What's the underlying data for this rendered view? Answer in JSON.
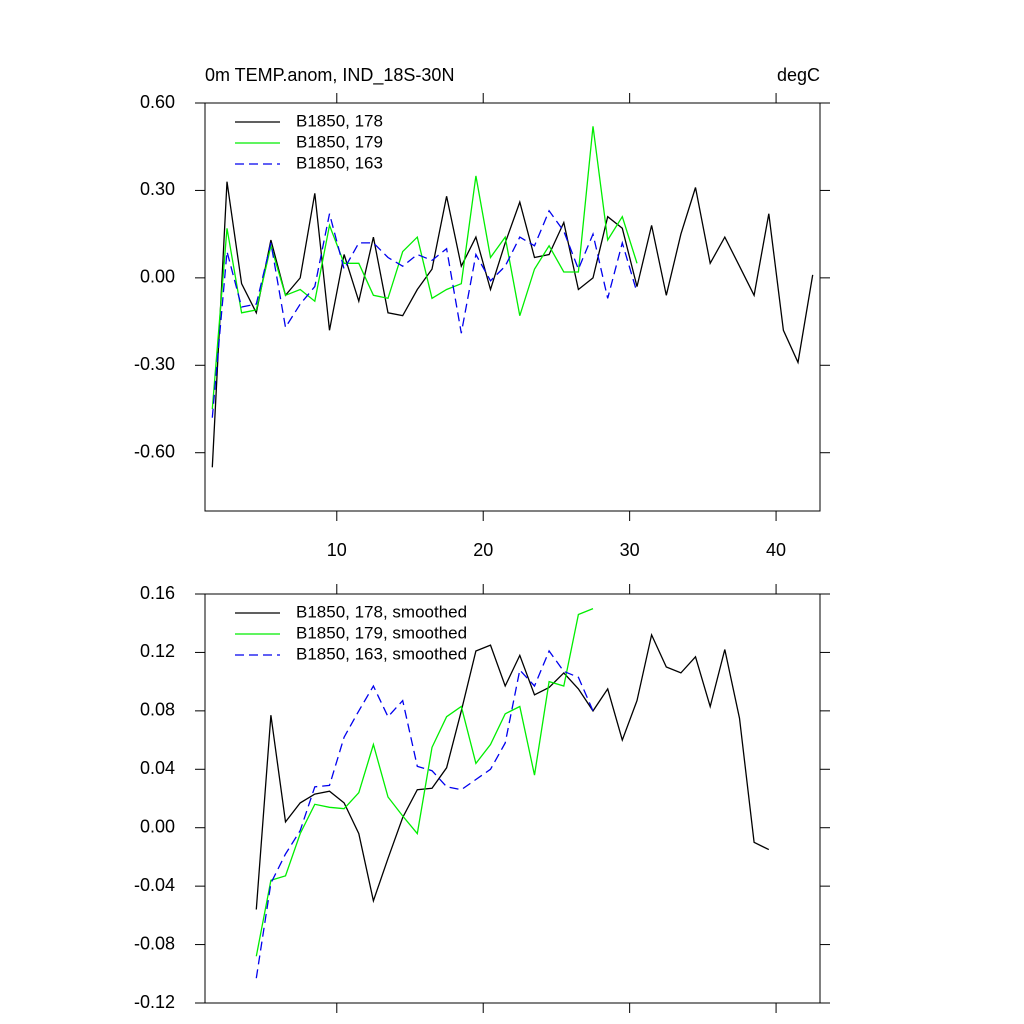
{
  "chart_data": [
    {
      "type": "line",
      "title": "0m TEMP.anom, IND_18S-30N",
      "units": "degC",
      "legend": "upper left",
      "xtick_labels": true,
      "x": [
        1.5,
        2.5,
        3.5,
        4.5,
        5.5,
        6.5,
        7.5,
        8.5,
        9.5,
        10.5,
        11.5,
        12.5,
        13.5,
        14.5,
        15.5,
        16.5,
        17.5,
        18.5,
        19.5,
        20.5,
        21.5,
        22.5,
        23.5,
        24.5,
        25.5,
        26.5,
        27.5,
        28.5,
        29.5,
        30.5,
        31.5,
        32.5,
        33.5,
        34.5,
        35.5,
        36.5,
        37.5,
        38.5,
        39.5,
        40.5,
        41.5,
        42.5
      ],
      "xlim": [
        1,
        43
      ],
      "xticks": [
        10,
        20,
        30,
        40
      ],
      "ylim": [
        -0.8,
        0.6
      ],
      "yticks": [
        {
          "value": 0.6,
          "label": "0.60"
        },
        {
          "value": 0.3,
          "label": "0.30"
        },
        {
          "value": 0,
          "label": "0.00"
        },
        {
          "value": -0.3,
          "label": "-0.30"
        },
        {
          "value": -0.6,
          "label": "-0.60"
        }
      ],
      "series": [
        {
          "name": "B1850, 178",
          "color": "#000000",
          "dash": false,
          "values": [
            -0.65,
            0.33,
            -0.02,
            -0.12,
            0.13,
            -0.06,
            0.0,
            0.29,
            -0.18,
            0.08,
            -0.08,
            0.14,
            -0.12,
            -0.13,
            -0.04,
            0.03,
            0.28,
            0.04,
            0.14,
            -0.04,
            0.12,
            0.26,
            0.07,
            0.08,
            0.19,
            -0.04,
            0.0,
            0.21,
            0.17,
            -0.03,
            0.18,
            -0.06,
            0.15,
            0.31,
            0.05,
            0.14,
            0.04,
            -0.06,
            0.22,
            -0.18,
            -0.29,
            0.01
          ]
        },
        {
          "name": "B1850, 179",
          "color": "#00ee00",
          "dash": false,
          "values": [
            -0.45,
            0.17,
            -0.12,
            -0.11,
            0.11,
            -0.06,
            -0.04,
            -0.08,
            0.18,
            0.05,
            0.05,
            -0.06,
            -0.07,
            0.09,
            0.14,
            -0.07,
            -0.04,
            -0.02,
            0.35,
            0.07,
            0.14,
            -0.13,
            0.03,
            0.11,
            0.02,
            0.02,
            0.52,
            0.13,
            0.21,
            0.05,
            null,
            null,
            null,
            null,
            null,
            null,
            null,
            null,
            null,
            null,
            null,
            null
          ]
        },
        {
          "name": "B1850, 163",
          "color": "#0000ee",
          "dash": true,
          "values": [
            -0.48,
            0.09,
            -0.1,
            -0.09,
            0.12,
            -0.17,
            -0.09,
            -0.03,
            0.22,
            0.03,
            0.12,
            0.12,
            0.07,
            0.04,
            0.08,
            0.06,
            0.1,
            -0.19,
            0.08,
            -0.01,
            0.04,
            0.14,
            0.11,
            0.23,
            0.16,
            0.03,
            0.15,
            -0.07,
            0.12,
            -0.05,
            null,
            null,
            null,
            null,
            null,
            null,
            null,
            null,
            null,
            null,
            null,
            null
          ]
        }
      ]
    },
    {
      "type": "line",
      "legend": "upper left",
      "xtick_labels": false,
      "x": [
        4.5,
        5.5,
        6.5,
        7.5,
        8.5,
        9.5,
        10.5,
        11.5,
        12.5,
        13.5,
        14.5,
        15.5,
        16.5,
        17.5,
        18.5,
        19.5,
        20.5,
        21.5,
        22.5,
        23.5,
        24.5,
        25.5,
        26.5,
        27.5,
        28.5,
        29.5,
        30.5,
        31.5,
        32.5,
        33.5,
        34.5,
        35.5,
        36.5,
        37.5,
        38.5,
        39.5
      ],
      "xlim": [
        1,
        43
      ],
      "xticks": [
        10,
        20,
        30,
        40
      ],
      "ylim": [
        -0.12,
        0.16
      ],
      "yticks": [
        {
          "value": 0.16,
          "label": "0.16"
        },
        {
          "value": 0.12,
          "label": "0.12"
        },
        {
          "value": 0.08,
          "label": "0.08"
        },
        {
          "value": 0.04,
          "label": "0.04"
        },
        {
          "value": 0,
          "label": "0.00"
        },
        {
          "value": -0.04,
          "label": "-0.04"
        },
        {
          "value": -0.08,
          "label": "-0.08"
        },
        {
          "value": -0.12,
          "label": "-0.12"
        }
      ],
      "series": [
        {
          "name": "B1850, 178, smoothed",
          "color": "#000000",
          "dash": false,
          "values": [
            -0.056,
            0.077,
            0.004,
            0.017,
            0.023,
            0.025,
            0.017,
            -0.004,
            -0.05,
            -0.021,
            0.007,
            0.026,
            0.027,
            0.041,
            0.08,
            0.121,
            0.125,
            0.097,
            0.118,
            0.091,
            0.096,
            0.106,
            0.095,
            0.08,
            0.095,
            0.06,
            0.087,
            0.132,
            0.11,
            0.106,
            0.117,
            0.083,
            0.122,
            0.075,
            -0.01,
            -0.015
          ]
        },
        {
          "name": "B1850, 179, smoothed",
          "color": "#00ee00",
          "dash": false,
          "values": [
            -0.088,
            -0.036,
            -0.033,
            -0.004,
            0.016,
            0.014,
            0.013,
            0.024,
            0.057,
            0.021,
            0.008,
            -0.004,
            0.055,
            0.076,
            0.083,
            0.044,
            0.057,
            0.078,
            0.083,
            0.036,
            0.1,
            0.097,
            0.146,
            0.15,
            null,
            null,
            null,
            null,
            null,
            null,
            null,
            null,
            null,
            null,
            null,
            null
          ]
        },
        {
          "name": "B1850, 163, smoothed",
          "color": "#0000ee",
          "dash": true,
          "values": [
            -0.103,
            -0.038,
            -0.018,
            -0.002,
            0.028,
            0.029,
            0.062,
            0.08,
            0.097,
            0.076,
            0.087,
            0.042,
            0.039,
            0.028,
            0.026,
            0.033,
            0.04,
            0.058,
            0.108,
            0.097,
            0.121,
            0.107,
            0.103,
            0.08,
            null,
            null,
            null,
            null,
            null,
            null,
            null,
            null,
            null,
            null,
            null,
            null
          ]
        }
      ]
    }
  ]
}
